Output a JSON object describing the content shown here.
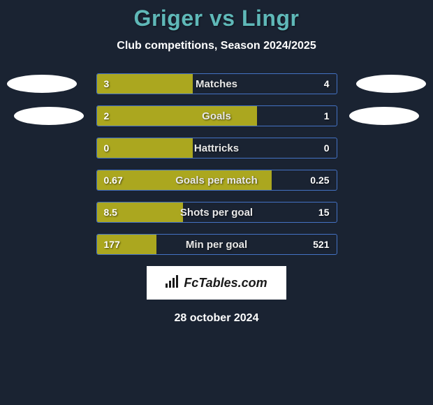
{
  "title": "Griger vs Lingr",
  "subtitle": "Club competitions, Season 2024/2025",
  "date": "28 october 2024",
  "brand": "FcTables.com",
  "colors": {
    "background": "#1a2332",
    "title": "#5fb8b8",
    "text": "#ffffff",
    "bar_fill": "#aba71f",
    "bar_border": "#4472c4",
    "avatar": "#ffffff",
    "brand_bg": "#ffffff",
    "brand_text": "#1a1a1a"
  },
  "bars": [
    {
      "label": "Matches",
      "left": "3",
      "right": "4",
      "fill_pct": 40
    },
    {
      "label": "Goals",
      "left": "2",
      "right": "1",
      "fill_pct": 67
    },
    {
      "label": "Hattricks",
      "left": "0",
      "right": "0",
      "fill_pct": 40
    },
    {
      "label": "Goals per match",
      "left": "0.67",
      "right": "0.25",
      "fill_pct": 73
    },
    {
      "label": "Shots per goal",
      "left": "8.5",
      "right": "15",
      "fill_pct": 36
    },
    {
      "label": "Min per goal",
      "left": "177",
      "right": "521",
      "fill_pct": 25
    }
  ]
}
